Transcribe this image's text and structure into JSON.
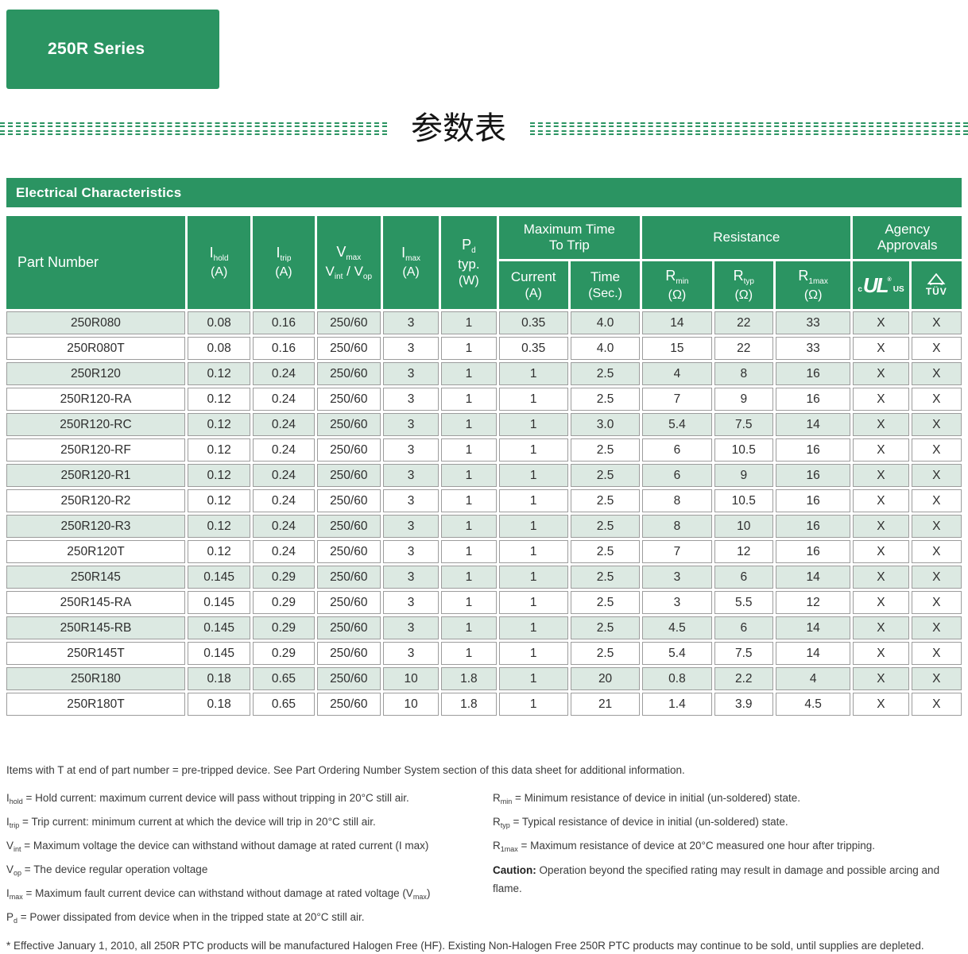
{
  "theme": {
    "brand_green": "#2B9462",
    "row_shade": "#DCE9E2"
  },
  "badge": {
    "label": "250R Series"
  },
  "divider": {
    "title_cn": "参数表"
  },
  "section": {
    "title": "Electrical Characteristics"
  },
  "table": {
    "headers": {
      "part_number": "Part Number",
      "i_hold": {
        "base": "I",
        "sub": "hold",
        "unit": "(A)"
      },
      "i_trip": {
        "base": "I",
        "sub": "trip",
        "unit": "(A)"
      },
      "v_max": {
        "base": "V",
        "sub": "max",
        "base2": "V",
        "sub2": "int",
        "sep": " / ",
        "base3": "V",
        "sub3": "op"
      },
      "i_max": {
        "base": "I",
        "sub": "max",
        "unit": "(A)"
      },
      "p_d": {
        "base": "P",
        "sub": "d",
        "line2": "typ.",
        "unit": "(W)"
      },
      "group_trip": {
        "line1": "Maximum Time",
        "line2": "To Trip"
      },
      "current": {
        "label": "Current",
        "unit": "(A)"
      },
      "time": {
        "label": "Time",
        "unit": "(Sec.)"
      },
      "group_resistance": "Resistance",
      "r_min": {
        "base": "R",
        "sub": "min",
        "unit": "(Ω)"
      },
      "r_typ": {
        "base": "R",
        "sub": "typ",
        "unit": "(Ω)"
      },
      "r_1max": {
        "base": "R",
        "sub": "1max",
        "unit": "(Ω)"
      },
      "group_agency": {
        "line1": "Agency",
        "line2": "Approvals"
      },
      "ul_mark": {
        "c": "c",
        "ul": "UL",
        "reg": "®",
        "us": "US"
      },
      "tuv_mark": "TÜV"
    },
    "rows": [
      [
        "250R080",
        "0.08",
        "0.16",
        "250/60",
        "3",
        "1",
        "0.35",
        "4.0",
        "14",
        "22",
        "33",
        "X",
        "X"
      ],
      [
        "250R080T",
        "0.08",
        "0.16",
        "250/60",
        "3",
        "1",
        "0.35",
        "4.0",
        "15",
        "22",
        "33",
        "X",
        "X"
      ],
      [
        "250R120",
        "0.12",
        "0.24",
        "250/60",
        "3",
        "1",
        "1",
        "2.5",
        "4",
        "8",
        "16",
        "X",
        "X"
      ],
      [
        "250R120-RA",
        "0.12",
        "0.24",
        "250/60",
        "3",
        "1",
        "1",
        "2.5",
        "7",
        "9",
        "16",
        "X",
        "X"
      ],
      [
        "250R120-RC",
        "0.12",
        "0.24",
        "250/60",
        "3",
        "1",
        "1",
        "3.0",
        "5.4",
        "7.5",
        "14",
        "X",
        "X"
      ],
      [
        "250R120-RF",
        "0.12",
        "0.24",
        "250/60",
        "3",
        "1",
        "1",
        "2.5",
        "6",
        "10.5",
        "16",
        "X",
        "X"
      ],
      [
        "250R120-R1",
        "0.12",
        "0.24",
        "250/60",
        "3",
        "1",
        "1",
        "2.5",
        "6",
        "9",
        "16",
        "X",
        "X"
      ],
      [
        "250R120-R2",
        "0.12",
        "0.24",
        "250/60",
        "3",
        "1",
        "1",
        "2.5",
        "8",
        "10.5",
        "16",
        "X",
        "X"
      ],
      [
        "250R120-R3",
        "0.12",
        "0.24",
        "250/60",
        "3",
        "1",
        "1",
        "2.5",
        "8",
        "10",
        "16",
        "X",
        "X"
      ],
      [
        "250R120T",
        "0.12",
        "0.24",
        "250/60",
        "3",
        "1",
        "1",
        "2.5",
        "7",
        "12",
        "16",
        "X",
        "X"
      ],
      [
        "250R145",
        "0.145",
        "0.29",
        "250/60",
        "3",
        "1",
        "1",
        "2.5",
        "3",
        "6",
        "14",
        "X",
        "X"
      ],
      [
        "250R145-RA",
        "0.145",
        "0.29",
        "250/60",
        "3",
        "1",
        "1",
        "2.5",
        "3",
        "5.5",
        "12",
        "X",
        "X"
      ],
      [
        "250R145-RB",
        "0.145",
        "0.29",
        "250/60",
        "3",
        "1",
        "1",
        "2.5",
        "4.5",
        "6",
        "14",
        "X",
        "X"
      ],
      [
        "250R145T",
        "0.145",
        "0.29",
        "250/60",
        "3",
        "1",
        "1",
        "2.5",
        "5.4",
        "7.5",
        "14",
        "X",
        "X"
      ],
      [
        "250R180",
        "0.18",
        "0.65",
        "250/60",
        "10",
        "1.8",
        "1",
        "20",
        "0.8",
        "2.2",
        "4",
        "X",
        "X"
      ],
      [
        "250R180T",
        "0.18",
        "0.65",
        "250/60",
        "10",
        "1.8",
        "1",
        "21",
        "1.4",
        "3.9",
        "4.5",
        "X",
        "X"
      ]
    ]
  },
  "notes": {
    "pretripped": "Items with T at end of part number = pre-tripped device. See Part Ordering Number System section of this data sheet for additional information.",
    "left": [
      {
        "sym": "I",
        "sub": "hold",
        "text": "= Hold current: maximum current device will pass without tripping in 20°C still air."
      },
      {
        "sym": "I",
        "sub": "trip",
        "text": "= Trip current: minimum current at which the device will trip in 20°C still air."
      },
      {
        "sym": "V",
        "sub": "int",
        "text": "= Maximum voltage the device can withstand without damage at rated current (I max)"
      },
      {
        "sym": "V",
        "sub": "op",
        "text": "= The device regular operation voltage"
      },
      {
        "sym": "I",
        "sub": "max",
        "text": "= Maximum fault current device can withstand without damage at rated voltage (V",
        "text_sub": "max",
        "text_end": ")"
      },
      {
        "sym": "P",
        "sub": "d",
        "text": "= Power dissipated from device when in the tripped state at 20°C still air."
      }
    ],
    "right": [
      {
        "sym": "R",
        "sub": "min",
        "text": "= Minimum resistance of device in initial (un-soldered) state."
      },
      {
        "sym": "R",
        "sub": "typ",
        "text": "= Typical resistance of device in initial (un-soldered) state."
      },
      {
        "sym": "R",
        "sub": "1max",
        "text": "= Maximum resistance of device at 20°C measured one hour after tripping."
      },
      {
        "bold": "Caution:",
        "text": "Operation beyond the specified rating may result in damage and possible arcing and flame."
      }
    ],
    "halogen": "* Effective January 1, 2010, all 250R PTC products will be manufactured Halogen Free (HF). Existing Non-Halogen Free 250R PTC products may continue to be sold, until supplies are depleted."
  }
}
